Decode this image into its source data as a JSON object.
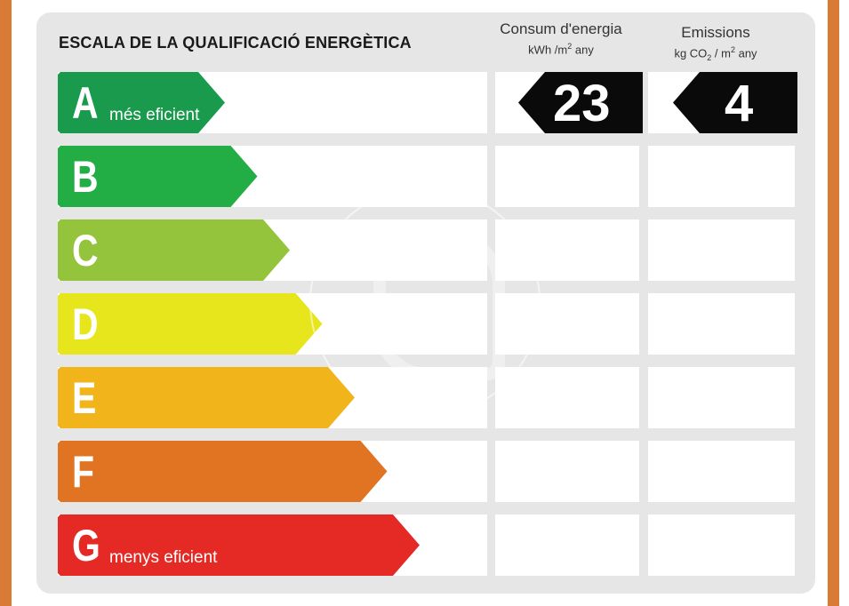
{
  "title": "ESCALA DE LA QUALIFICACIÓ ENERGÈTICA",
  "columns": {
    "energy": {
      "line1": "Consum d'energia",
      "unit_main": "kWh /m",
      "unit_sup": "2",
      "unit_tail": "  any"
    },
    "emissions": {
      "line1": "Emissions",
      "unit_pre": "kg CO",
      "unit_sub": "2",
      "unit_mid": " / m",
      "unit_sup": "2",
      "unit_tail": "  any"
    }
  },
  "rating": {
    "energy_value": "23",
    "emissions_value": "4"
  },
  "grades": [
    {
      "letter": "A",
      "label": "més eficient",
      "color": "#1a9a4c"
    },
    {
      "letter": "B",
      "label": "",
      "color": "#22ad45"
    },
    {
      "letter": "C",
      "label": "",
      "color": "#93c43b"
    },
    {
      "letter": "D",
      "label": "",
      "color": "#e7e51c"
    },
    {
      "letter": "E",
      "label": "",
      "color": "#f1b41a"
    },
    {
      "letter": "F",
      "label": "",
      "color": "#e07423"
    },
    {
      "letter": "G",
      "label": "menys eficient",
      "color": "#e52a26"
    }
  ],
  "colors": {
    "frame": "#d97a35",
    "panel": "#e6e6e6",
    "badge": "#0a0a0a"
  }
}
